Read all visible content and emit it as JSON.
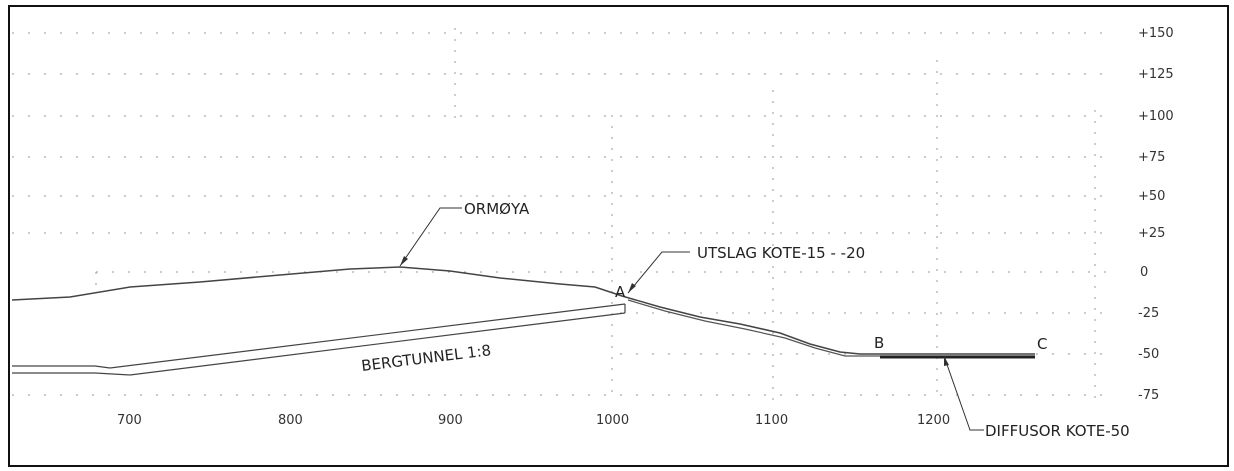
{
  "drawing": {
    "annotations": {
      "ormoya": "ORMØYA",
      "outlet": "UTSLAG KOTE-15 - -20",
      "tunnel": "BERGTUNNEL 1:8",
      "diffuser": "DIFFUSOR KOTE-50",
      "point_a": "A",
      "point_b": "B",
      "point_c": "C"
    },
    "elevation_ticks": [
      "+150",
      "+125",
      "+100",
      "+75",
      "+50",
      "+25",
      "0",
      "-25",
      "-50",
      "-75"
    ],
    "chainage_ticks": [
      "700",
      "800",
      "900",
      "1000",
      "1100",
      "1200"
    ]
  }
}
